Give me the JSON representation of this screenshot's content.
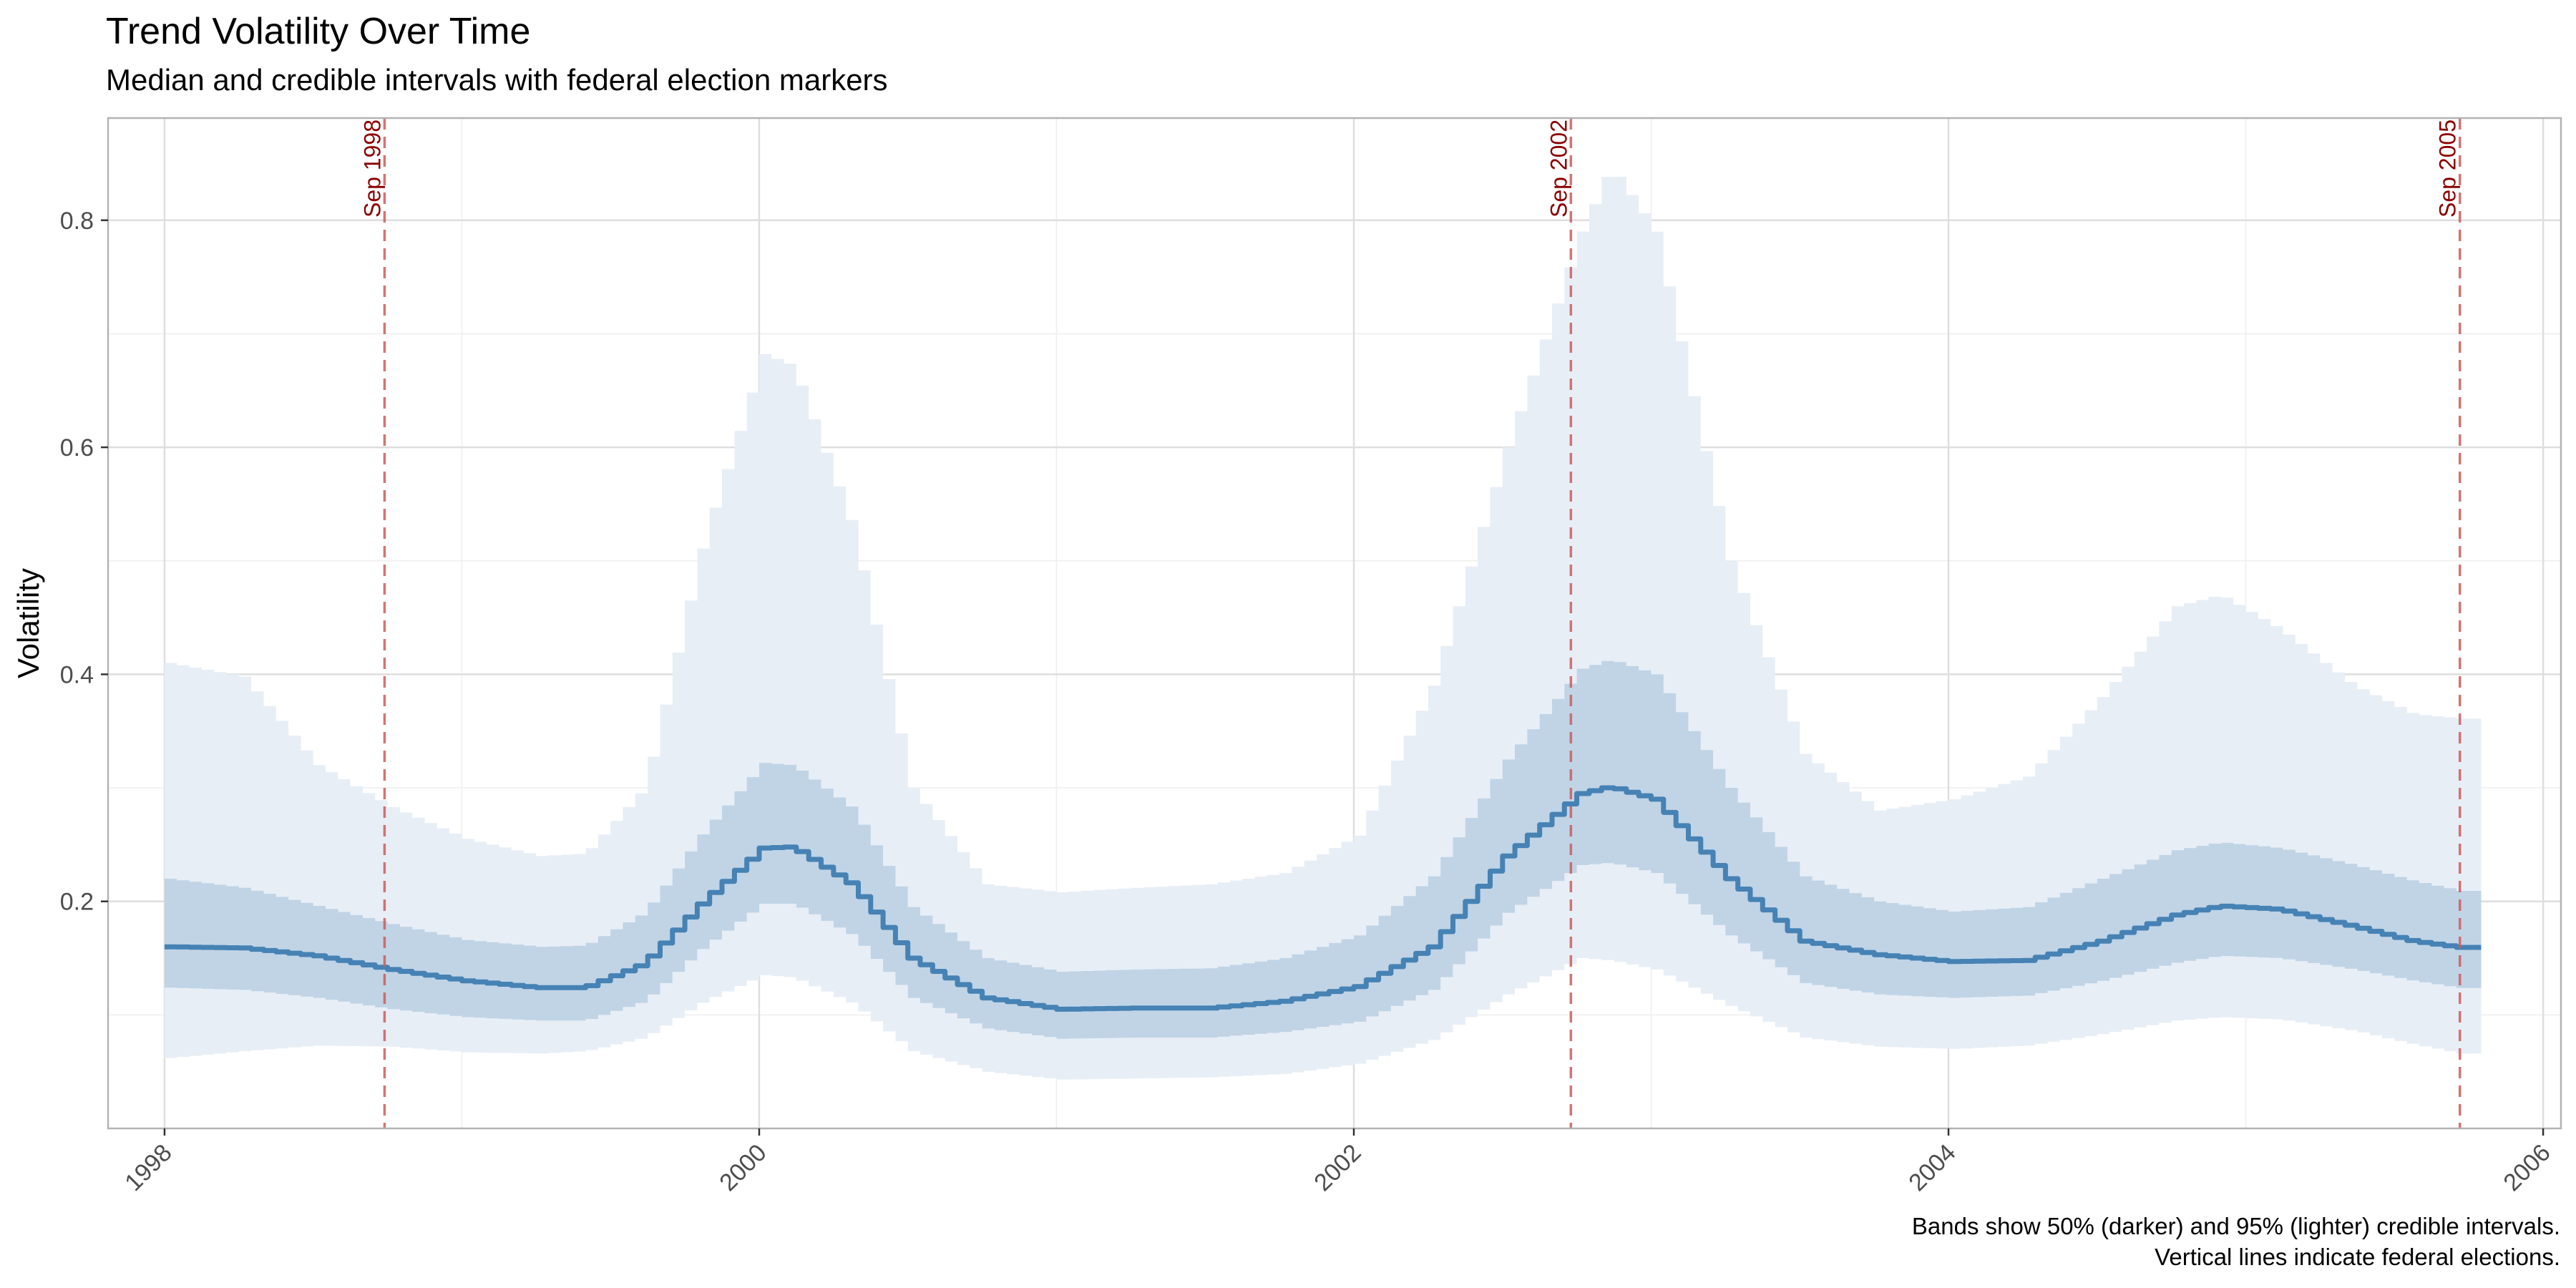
{
  "chart_data": {
    "type": "area",
    "title": "Trend Volatility Over Time",
    "subtitle": "Median and credible intervals with federal election markers",
    "xlabel": "",
    "ylabel": "Volatility",
    "caption": [
      "Bands show 50% (darker) and 95% (lighter) credible intervals.",
      "Vertical lines indicate federal elections."
    ],
    "xlim": [
      1997.81,
      2006.06
    ],
    "ylim": [
      0.0,
      0.89
    ],
    "x_ticks": [
      1998,
      2000,
      2002,
      2004,
      2006
    ],
    "x_tick_labels": [
      "1998",
      "2000",
      "2002",
      "2004",
      "2006"
    ],
    "y_ticks": [
      0.2,
      0.4,
      0.6,
      0.8
    ],
    "y_tick_labels": [
      "0.2",
      "0.4",
      "0.6",
      "0.8"
    ],
    "grid": true,
    "x_start": 1998.0,
    "x_end": 2005.75,
    "step": 0.0416667,
    "series": [
      {
        "name": "Median",
        "role": "line",
        "knots": [
          [
            1998.0,
            0.16
          ],
          [
            1998.25,
            0.159
          ],
          [
            1998.5,
            0.152
          ],
          [
            1998.75,
            0.14
          ],
          [
            1999.0,
            0.13
          ],
          [
            1999.25,
            0.124
          ],
          [
            1999.4,
            0.124
          ],
          [
            1999.6,
            0.145
          ],
          [
            1999.8,
            0.2
          ],
          [
            2000.0,
            0.247
          ],
          [
            2000.1,
            0.248
          ],
          [
            2000.3,
            0.215
          ],
          [
            2000.5,
            0.15
          ],
          [
            2000.75,
            0.115
          ],
          [
            2001.0,
            0.105
          ],
          [
            2001.25,
            0.106
          ],
          [
            2001.5,
            0.106
          ],
          [
            2001.75,
            0.112
          ],
          [
            2002.0,
            0.125
          ],
          [
            2002.25,
            0.16
          ],
          [
            2002.5,
            0.24
          ],
          [
            2002.75,
            0.295
          ],
          [
            2002.85,
            0.301
          ],
          [
            2003.0,
            0.29
          ],
          [
            2003.25,
            0.22
          ],
          [
            2003.5,
            0.165
          ],
          [
            2003.75,
            0.153
          ],
          [
            2004.0,
            0.147
          ],
          [
            2004.25,
            0.148
          ],
          [
            2004.5,
            0.165
          ],
          [
            2004.75,
            0.188
          ],
          [
            2004.9,
            0.196
          ],
          [
            2005.1,
            0.193
          ],
          [
            2005.35,
            0.178
          ],
          [
            2005.55,
            0.165
          ],
          [
            2005.75,
            0.158
          ]
        ]
      },
      {
        "name": "50% interval",
        "role": "band",
        "lower": [
          [
            1998.0,
            0.124
          ],
          [
            1998.25,
            0.122
          ],
          [
            1998.5,
            0.115
          ],
          [
            1998.75,
            0.105
          ],
          [
            1999.0,
            0.098
          ],
          [
            1999.25,
            0.095
          ],
          [
            1999.4,
            0.095
          ],
          [
            1999.6,
            0.112
          ],
          [
            1999.8,
            0.16
          ],
          [
            2000.0,
            0.198
          ],
          [
            2000.1,
            0.198
          ],
          [
            2000.3,
            0.17
          ],
          [
            2000.5,
            0.115
          ],
          [
            2000.75,
            0.088
          ],
          [
            2001.0,
            0.079
          ],
          [
            2001.25,
            0.08
          ],
          [
            2001.5,
            0.08
          ],
          [
            2001.75,
            0.085
          ],
          [
            2002.0,
            0.094
          ],
          [
            2002.25,
            0.122
          ],
          [
            2002.5,
            0.19
          ],
          [
            2002.75,
            0.232
          ],
          [
            2002.85,
            0.234
          ],
          [
            2003.0,
            0.225
          ],
          [
            2003.25,
            0.17
          ],
          [
            2003.5,
            0.128
          ],
          [
            2003.75,
            0.118
          ],
          [
            2004.0,
            0.115
          ],
          [
            2004.25,
            0.117
          ],
          [
            2004.5,
            0.13
          ],
          [
            2004.75,
            0.146
          ],
          [
            2004.9,
            0.152
          ],
          [
            2005.1,
            0.15
          ],
          [
            2005.35,
            0.14
          ],
          [
            2005.55,
            0.13
          ],
          [
            2005.75,
            0.122
          ]
        ],
        "upper": [
          [
            1998.0,
            0.22
          ],
          [
            1998.25,
            0.212
          ],
          [
            1998.5,
            0.196
          ],
          [
            1998.75,
            0.18
          ],
          [
            1999.0,
            0.166
          ],
          [
            1999.25,
            0.16
          ],
          [
            1999.4,
            0.161
          ],
          [
            1999.6,
            0.19
          ],
          [
            1999.8,
            0.262
          ],
          [
            2000.0,
            0.322
          ],
          [
            2000.1,
            0.32
          ],
          [
            2000.3,
            0.282
          ],
          [
            2000.5,
            0.195
          ],
          [
            2000.75,
            0.15
          ],
          [
            2001.0,
            0.138
          ],
          [
            2001.25,
            0.14
          ],
          [
            2001.5,
            0.141
          ],
          [
            2001.75,
            0.15
          ],
          [
            2002.0,
            0.17
          ],
          [
            2002.25,
            0.222
          ],
          [
            2002.5,
            0.325
          ],
          [
            2002.75,
            0.405
          ],
          [
            2002.85,
            0.413
          ],
          [
            2003.0,
            0.4
          ],
          [
            2003.25,
            0.3
          ],
          [
            2003.5,
            0.222
          ],
          [
            2003.75,
            0.2
          ],
          [
            2004.0,
            0.191
          ],
          [
            2004.25,
            0.195
          ],
          [
            2004.5,
            0.22
          ],
          [
            2004.75,
            0.245
          ],
          [
            2004.9,
            0.252
          ],
          [
            2005.1,
            0.247
          ],
          [
            2005.35,
            0.232
          ],
          [
            2005.55,
            0.218
          ],
          [
            2005.75,
            0.207
          ]
        ]
      },
      {
        "name": "95% interval",
        "role": "band",
        "lower": [
          [
            1998.0,
            0.062
          ],
          [
            1998.25,
            0.068
          ],
          [
            1998.5,
            0.073
          ],
          [
            1998.75,
            0.072
          ],
          [
            1999.0,
            0.067
          ],
          [
            1999.25,
            0.066
          ],
          [
            1999.4,
            0.068
          ],
          [
            1999.6,
            0.08
          ],
          [
            1999.8,
            0.112
          ],
          [
            2000.0,
            0.135
          ],
          [
            2000.1,
            0.133
          ],
          [
            2000.3,
            0.11
          ],
          [
            2000.5,
            0.068
          ],
          [
            2000.75,
            0.05
          ],
          [
            2001.0,
            0.043
          ],
          [
            2001.25,
            0.044
          ],
          [
            2001.5,
            0.045
          ],
          [
            2001.75,
            0.048
          ],
          [
            2002.0,
            0.057
          ],
          [
            2002.25,
            0.078
          ],
          [
            2002.5,
            0.118
          ],
          [
            2002.75,
            0.15
          ],
          [
            2002.85,
            0.148
          ],
          [
            2003.0,
            0.14
          ],
          [
            2003.25,
            0.108
          ],
          [
            2003.5,
            0.08
          ],
          [
            2003.75,
            0.072
          ],
          [
            2004.0,
            0.07
          ],
          [
            2004.25,
            0.073
          ],
          [
            2004.5,
            0.083
          ],
          [
            2004.75,
            0.095
          ],
          [
            2004.9,
            0.098
          ],
          [
            2005.1,
            0.096
          ],
          [
            2005.35,
            0.086
          ],
          [
            2005.55,
            0.074
          ],
          [
            2005.75,
            0.064
          ]
        ],
        "upper": [
          [
            1998.0,
            0.41
          ],
          [
            1998.25,
            0.398
          ],
          [
            1998.5,
            0.32
          ],
          [
            1998.75,
            0.283
          ],
          [
            1999.0,
            0.255
          ],
          [
            1999.25,
            0.24
          ],
          [
            1999.4,
            0.242
          ],
          [
            1999.6,
            0.3
          ],
          [
            1999.8,
            0.52
          ],
          [
            2000.0,
            0.682
          ],
          [
            2000.1,
            0.672
          ],
          [
            2000.3,
            0.53
          ],
          [
            2000.5,
            0.3
          ],
          [
            2000.75,
            0.215
          ],
          [
            2001.0,
            0.208
          ],
          [
            2001.25,
            0.212
          ],
          [
            2001.5,
            0.215
          ],
          [
            2001.75,
            0.225
          ],
          [
            2002.0,
            0.258
          ],
          [
            2002.25,
            0.39
          ],
          [
            2002.5,
            0.6
          ],
          [
            2002.75,
            0.79
          ],
          [
            2002.85,
            0.848
          ],
          [
            2003.0,
            0.79
          ],
          [
            2003.25,
            0.5
          ],
          [
            2003.5,
            0.33
          ],
          [
            2003.75,
            0.28
          ],
          [
            2004.0,
            0.29
          ],
          [
            2004.25,
            0.31
          ],
          [
            2004.5,
            0.38
          ],
          [
            2004.75,
            0.46
          ],
          [
            2004.9,
            0.47
          ],
          [
            2005.1,
            0.44
          ],
          [
            2005.35,
            0.39
          ],
          [
            2005.55,
            0.365
          ],
          [
            2005.75,
            0.36
          ]
        ]
      }
    ],
    "election_markers": [
      {
        "x": 1998.74,
        "label": "Sep 1998"
      },
      {
        "x": 2002.73,
        "label": "Sep 2002"
      },
      {
        "x": 2005.72,
        "label": "Sep 2005"
      }
    ],
    "colors": {
      "band95": "#e8eef6",
      "band50": "#c0d4e6",
      "median": "#4682b4",
      "marker": "#cd5c5c",
      "marker_label": "#8b0000",
      "grid": "#dedede",
      "axis_text": "#4d4d4d"
    }
  }
}
